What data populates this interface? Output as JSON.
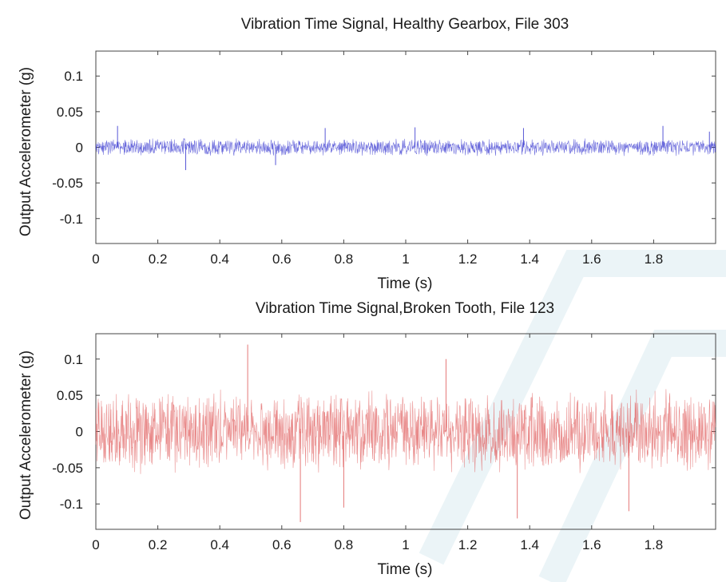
{
  "chart_data": [
    {
      "type": "line",
      "title": "Vibration Time Signal, Healthy Gearbox, File 303",
      "xlabel": "Time (s)",
      "ylabel": "Output Accelerometer (g)",
      "xlim": [
        0,
        2
      ],
      "ylim": [
        -0.135,
        0.135
      ],
      "xticks": [
        "0",
        "0.2",
        "0.4",
        "0.6",
        "0.8",
        "1",
        "1.2",
        "1.4",
        "1.6",
        "1.8"
      ],
      "yticks": [
        "0.1",
        "0.05",
        "0",
        "-0.05",
        "-0.1"
      ],
      "xtick_values": [
        0,
        0.2,
        0.4,
        0.6,
        0.8,
        1.0,
        1.2,
        1.4,
        1.6,
        1.8
      ],
      "ytick_values": [
        0.1,
        0.05,
        0,
        -0.05,
        -0.1
      ],
      "grid": false,
      "line_color": "#3a3ad0",
      "series": [
        {
          "x_start": 0,
          "x_end": 2,
          "amplitude_range": [
            -0.032,
            0.032
          ],
          "typical_amplitude": 0.012,
          "peaks": [
            {
              "x": 0.07,
              "y": 0.03
            },
            {
              "x": 0.29,
              "y": -0.032
            },
            {
              "x": 0.58,
              "y": -0.025
            },
            {
              "x": 0.74,
              "y": 0.027
            },
            {
              "x": 1.03,
              "y": 0.028
            },
            {
              "x": 1.38,
              "y": 0.027
            },
            {
              "x": 1.83,
              "y": 0.03
            },
            {
              "x": 1.98,
              "y": 0.022
            }
          ]
        }
      ]
    },
    {
      "type": "line",
      "title": "Vibration Time Signal,Broken Tooth, File 123",
      "xlabel": "Time (s)",
      "ylabel": "Output Accelerometer (g)",
      "xlim": [
        0,
        2
      ],
      "ylim": [
        -0.135,
        0.135
      ],
      "xticks": [
        "0",
        "0.2",
        "0.4",
        "0.6",
        "0.8",
        "1",
        "1.2",
        "1.4",
        "1.6",
        "1.8"
      ],
      "yticks": [
        "0.1",
        "0.05",
        "0",
        "-0.05",
        "-0.1"
      ],
      "xtick_values": [
        0,
        0.2,
        0.4,
        0.6,
        0.8,
        1.0,
        1.2,
        1.4,
        1.6,
        1.8
      ],
      "ytick_values": [
        0.1,
        0.05,
        0,
        -0.05,
        -0.1
      ],
      "grid": false,
      "line_color": "#e06060",
      "series": [
        {
          "x_start": 0,
          "x_end": 2,
          "amplitude_range": [
            -0.125,
            0.12
          ],
          "typical_amplitude": 0.055,
          "peaks": [
            {
              "x": 0.49,
              "y": 0.12
            },
            {
              "x": 0.66,
              "y": -0.125
            },
            {
              "x": 1.36,
              "y": -0.12
            },
            {
              "x": 0.8,
              "y": -0.105
            },
            {
              "x": 1.13,
              "y": 0.1
            },
            {
              "x": 1.72,
              "y": -0.11
            }
          ]
        }
      ]
    }
  ]
}
